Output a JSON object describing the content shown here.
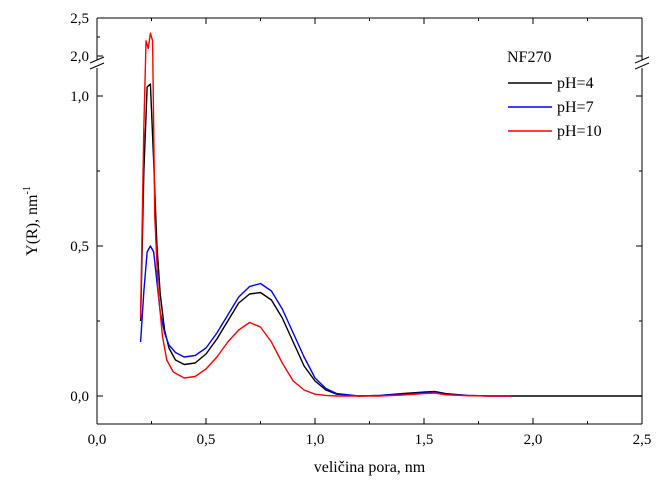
{
  "chart_data": {
    "type": "line",
    "xlabel": "veličina pora, nm",
    "ylabel": "Y(R), nm",
    "ylabel_superscript": "-1",
    "xlim": [
      0.0,
      2.5
    ],
    "ylim_lower": [
      0.0,
      1.1
    ],
    "ylim_upper": [
      2.0,
      2.5
    ],
    "axis_break": "y",
    "x_ticks": [
      {
        "value": 0.0,
        "label": "0,0"
      },
      {
        "value": 0.5,
        "label": "0,5"
      },
      {
        "value": 1.0,
        "label": "1,0"
      },
      {
        "value": 1.5,
        "label": "1,5"
      },
      {
        "value": 2.0,
        "label": "2,0"
      },
      {
        "value": 2.5,
        "label": "2,5"
      }
    ],
    "y_ticks_lower": [
      {
        "value": 0.0,
        "label": "0,0"
      },
      {
        "value": 0.5,
        "label": "0,5"
      },
      {
        "value": 1.0,
        "label": "1,0"
      }
    ],
    "y_ticks_upper": [
      {
        "value": 2.0,
        "label": "2,0"
      },
      {
        "value": 2.5,
        "label": "2,5"
      }
    ],
    "legend_title": "NF270",
    "legend_position": "top-right",
    "grid": false,
    "series": [
      {
        "name": "pH=4",
        "color": "#000000",
        "x": [
          0.2,
          0.215,
          0.23,
          0.245,
          0.26,
          0.275,
          0.29,
          0.31,
          0.33,
          0.36,
          0.4,
          0.45,
          0.5,
          0.55,
          0.6,
          0.65,
          0.7,
          0.75,
          0.8,
          0.85,
          0.9,
          0.95,
          1.0,
          1.05,
          1.1,
          1.2,
          1.3,
          1.4,
          1.5,
          1.55,
          1.6,
          1.7,
          1.8,
          1.9,
          2.0,
          2.2,
          2.5
        ],
        "y": [
          0.25,
          0.75,
          1.03,
          1.04,
          0.78,
          0.5,
          0.34,
          0.22,
          0.16,
          0.12,
          0.105,
          0.11,
          0.14,
          0.19,
          0.25,
          0.31,
          0.34,
          0.345,
          0.32,
          0.26,
          0.18,
          0.1,
          0.05,
          0.02,
          0.006,
          0.0,
          0.002,
          0.008,
          0.013,
          0.015,
          0.008,
          0.002,
          0.0,
          0.0,
          0.0,
          0.0,
          0.0
        ]
      },
      {
        "name": "pH=7",
        "color": "#0000ff",
        "x": [
          0.2,
          0.215,
          0.23,
          0.245,
          0.26,
          0.275,
          0.29,
          0.31,
          0.33,
          0.36,
          0.4,
          0.45,
          0.5,
          0.55,
          0.6,
          0.65,
          0.7,
          0.75,
          0.8,
          0.85,
          0.9,
          0.95,
          1.0,
          1.05,
          1.1,
          1.2,
          1.3,
          1.4,
          1.5,
          1.55,
          1.6,
          1.7,
          1.8,
          1.9
        ],
        "y": [
          0.18,
          0.35,
          0.48,
          0.5,
          0.48,
          0.38,
          0.28,
          0.21,
          0.17,
          0.145,
          0.13,
          0.135,
          0.16,
          0.21,
          0.27,
          0.33,
          0.365,
          0.375,
          0.35,
          0.29,
          0.21,
          0.13,
          0.06,
          0.025,
          0.008,
          0.0,
          0.002,
          0.006,
          0.01,
          0.012,
          0.006,
          0.002,
          0.0,
          0.0
        ]
      },
      {
        "name": "pH=10",
        "color": "#ff0000",
        "x": [
          0.2,
          0.215,
          0.225,
          0.235,
          0.245,
          0.255,
          0.265,
          0.28,
          0.3,
          0.32,
          0.35,
          0.4,
          0.45,
          0.5,
          0.55,
          0.6,
          0.65,
          0.7,
          0.75,
          0.8,
          0.85,
          0.9,
          0.95,
          1.0,
          1.05,
          1.1,
          1.2,
          1.3,
          1.4,
          1.5,
          1.55,
          1.6,
          1.7,
          1.8,
          1.9
        ],
        "y": [
          0.26,
          0.9,
          2.2,
          2.1,
          2.3,
          2.2,
          0.6,
          0.36,
          0.2,
          0.12,
          0.08,
          0.06,
          0.065,
          0.09,
          0.13,
          0.18,
          0.22,
          0.245,
          0.23,
          0.18,
          0.11,
          0.05,
          0.02,
          0.006,
          0.002,
          0.0,
          0.0,
          0.0,
          0.003,
          0.008,
          0.01,
          0.004,
          0.001,
          0.0,
          0.0
        ]
      }
    ]
  }
}
